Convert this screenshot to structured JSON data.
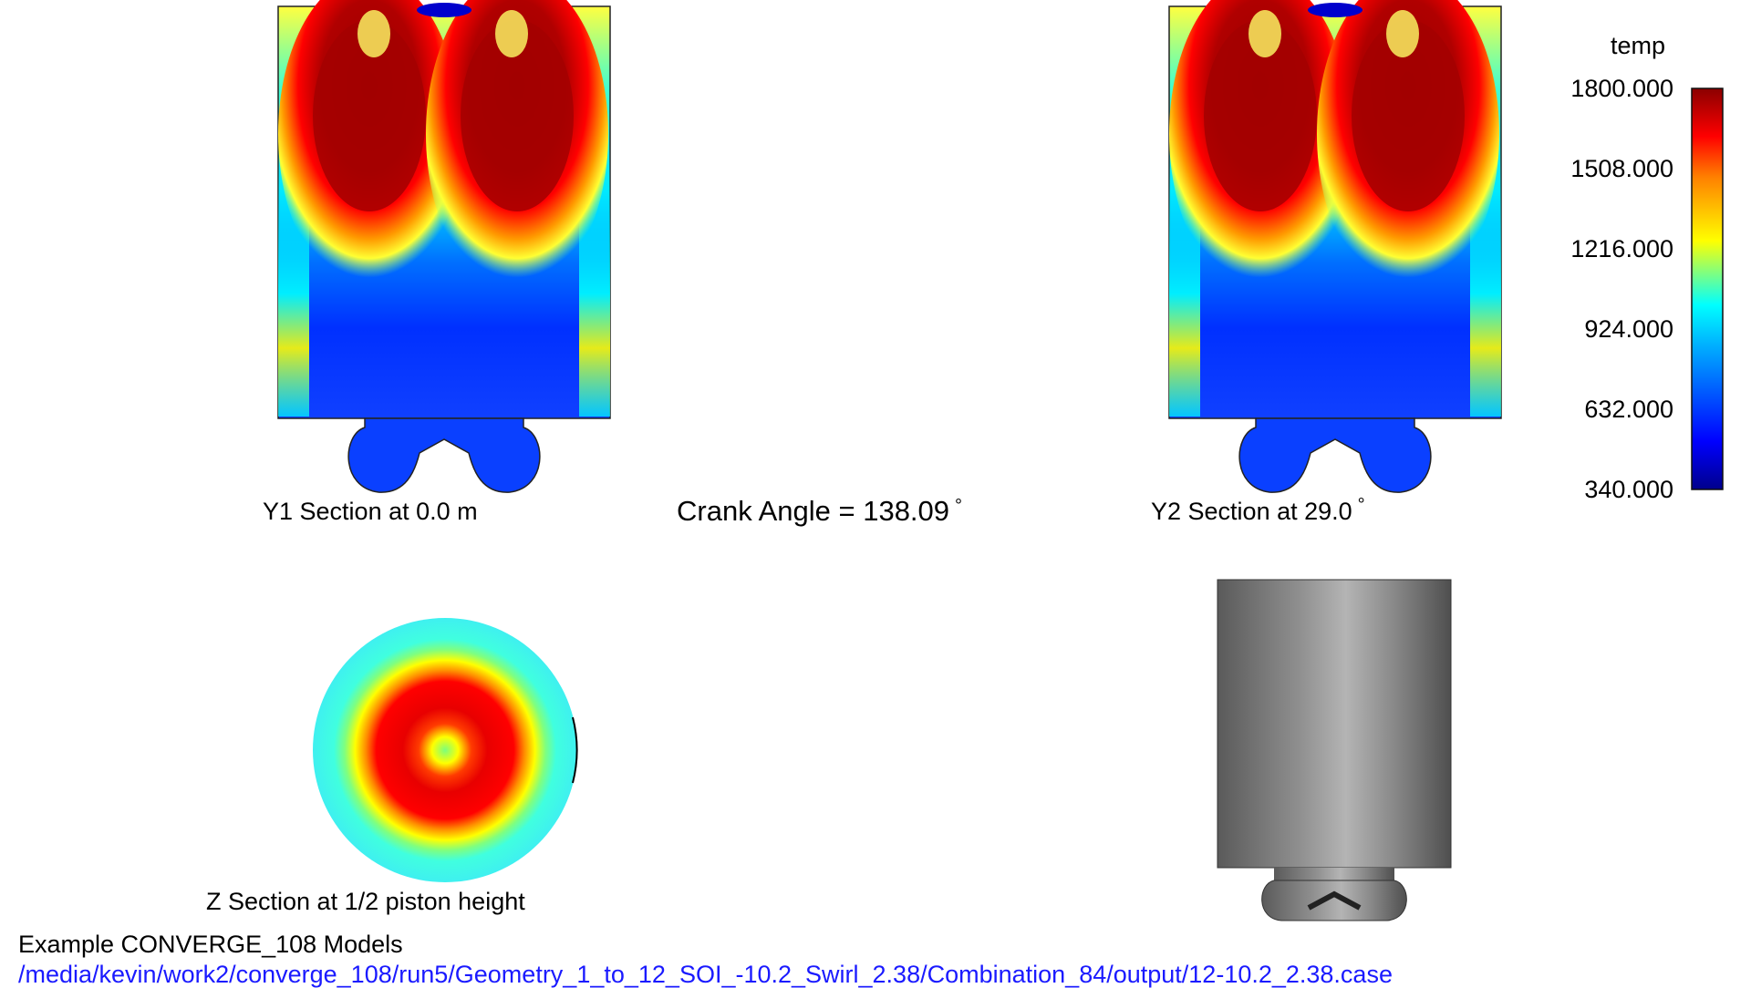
{
  "labels": {
    "y1_section": "Y1 Section at 0.0 m",
    "y2_section": "Y2 Section at 29.0",
    "y2_degree": "°",
    "crank_angle": "Crank Angle = 138.09",
    "crank_degree": "°",
    "z_section": "Z Section at 1/2 piston height"
  },
  "colorbar": {
    "title": "temp",
    "ticks": [
      "1800.000",
      "1508.000",
      "1216.000",
      "924.000",
      "632.000",
      "340.000"
    ],
    "colors": [
      "#8b0000",
      "#ff0000",
      "#ffff00",
      "#00ffff",
      "#0000ff",
      "#00008b"
    ]
  },
  "footer": {
    "line1": "Example CONVERGE_108 Models",
    "line2": "/media/kevin/work2/converge_108/run5/Geometry_1_to_12_SOI_-10.2_Swirl_2.38/Combination_84/output/12-10.2_2.38.case",
    "line2_color": "#1a1aff"
  }
}
